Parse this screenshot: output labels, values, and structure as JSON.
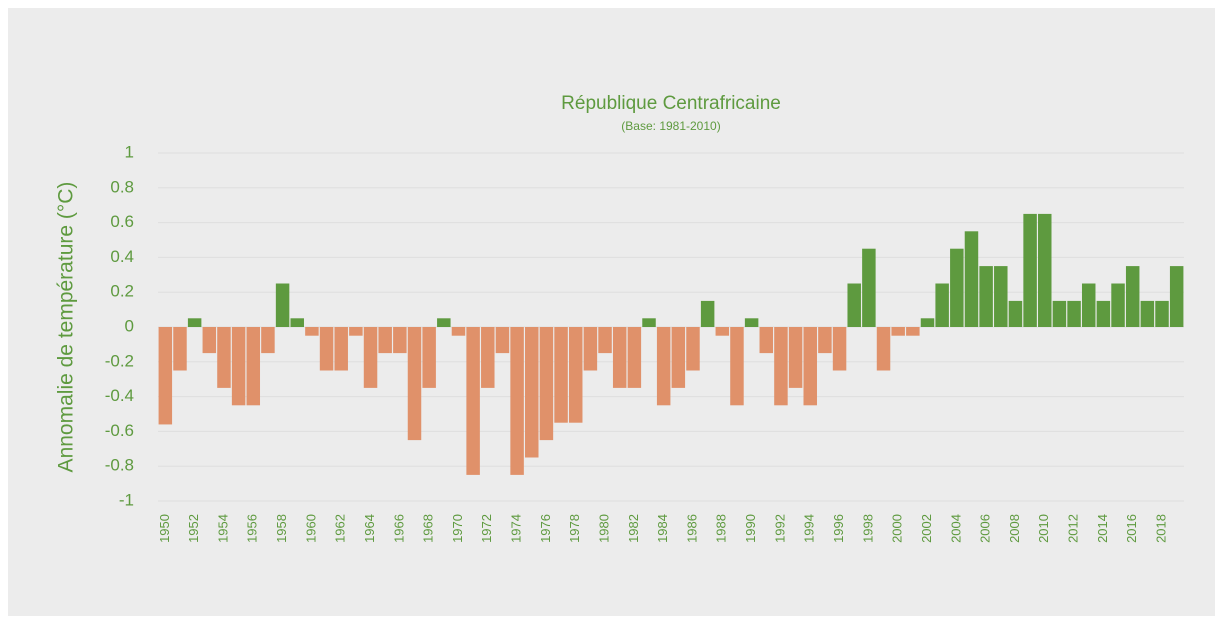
{
  "chart_data": {
    "type": "bar",
    "title": "République Centrafricaine",
    "subtitle": "(Base: 1981-2010)",
    "y_label": "Annomalie de température (°C)",
    "categories": [
      "1950",
      null,
      "1952",
      null,
      "1954",
      null,
      "1956",
      null,
      "1958",
      null,
      "1960",
      null,
      "1962",
      null,
      "1964",
      null,
      "1966",
      null,
      "1968",
      null,
      "1970",
      null,
      "1972",
      null,
      "1974",
      null,
      "1976",
      null,
      "1978",
      null,
      "1980",
      null,
      "1982",
      null,
      "1984",
      null,
      "1986",
      null,
      "1988",
      null,
      "1990",
      null,
      "1992",
      null,
      "1994",
      null,
      "1996",
      null,
      "1998",
      null,
      "2000",
      null,
      "2002",
      null,
      "2004",
      null,
      "2006",
      null,
      "2008",
      null,
      "2010",
      null,
      "2012",
      null,
      "2014",
      null,
      "2016",
      null,
      "2018",
      null
    ],
    "values": [
      -0.56,
      -0.25,
      0.05,
      -0.15,
      -0.35,
      -0.45,
      -0.45,
      -0.15,
      0.25,
      0.05,
      -0.05,
      -0.25,
      -0.25,
      -0.05,
      -0.35,
      -0.15,
      -0.15,
      -0.65,
      -0.35,
      0.05,
      -0.05,
      -0.85,
      -0.35,
      -0.15,
      -0.85,
      -0.75,
      -0.65,
      -0.55,
      -0.55,
      -0.25,
      -0.15,
      -0.35,
      -0.35,
      0.05,
      -0.45,
      -0.35,
      -0.25,
      0.15,
      -0.05,
      -0.45,
      0.05,
      -0.15,
      -0.45,
      -0.35,
      -0.45,
      -0.15,
      -0.25,
      0.25,
      0.45,
      -0.25,
      -0.05,
      -0.05,
      0.05,
      0.25,
      0.45,
      0.55,
      0.35,
      0.35,
      0.15,
      0.65,
      0.65,
      0.15,
      0.15,
      0.25,
      0.15,
      0.25,
      0.35,
      0.15,
      0.15,
      0.35
    ],
    "positive_color": "#5e9a3f",
    "negative_color": "#e0916a",
    "ylim": [
      -1,
      1
    ],
    "yticks": [
      -1,
      -0.8,
      -0.6,
      -0.4,
      -0.2,
      0,
      0.2,
      0.4,
      0.6,
      0.8,
      1
    ],
    "grid": true
  }
}
